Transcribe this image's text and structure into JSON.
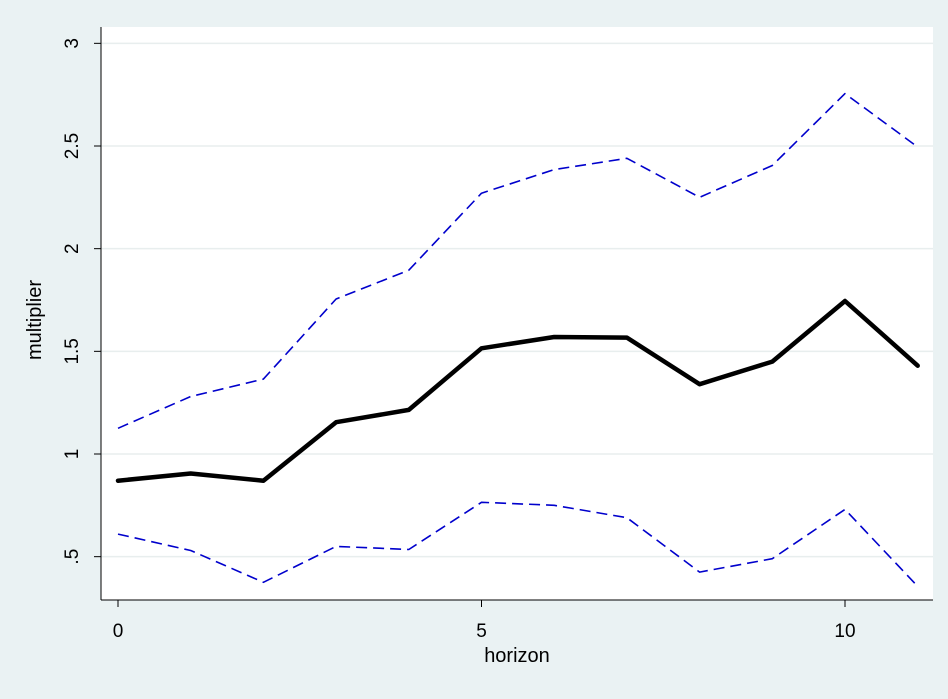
{
  "chart_data": {
    "type": "line",
    "title": "",
    "xlabel": "horizon",
    "ylabel": "multiplier",
    "xlim": [
      0,
      11
    ],
    "ylim": [
      0.3,
      3
    ],
    "x": [
      0,
      1,
      2,
      3,
      4,
      5,
      6,
      7,
      8,
      9,
      10,
      11
    ],
    "xticks": [
      0,
      5,
      10
    ],
    "xtick_labels": [
      "0",
      "5",
      "10"
    ],
    "yticks": [
      0.5,
      1,
      1.5,
      2,
      2.5,
      3
    ],
    "ytick_labels": [
      ".5",
      "1",
      "1.5",
      "2",
      "2.5",
      "3"
    ],
    "grid": true,
    "legend": "none",
    "series": [
      {
        "values": [
          1.125,
          1.28,
          1.365,
          1.755,
          1.895,
          2.27,
          2.385,
          2.44,
          2.25,
          2.405,
          2.755,
          2.495
        ],
        "color": "#0000cc",
        "style": "dashed",
        "width": 1.6
      },
      {
        "values": [
          0.87,
          0.905,
          0.87,
          1.155,
          1.215,
          1.515,
          1.57,
          1.567,
          1.34,
          1.45,
          1.745,
          1.43
        ],
        "color": "#000000",
        "style": "solid",
        "width": 4.5
      },
      {
        "values": [
          0.61,
          0.53,
          0.375,
          0.55,
          0.535,
          0.765,
          0.75,
          0.69,
          0.425,
          0.49,
          0.73,
          0.355
        ],
        "color": "#0000cc",
        "style": "dashed",
        "width": 1.6
      }
    ]
  }
}
